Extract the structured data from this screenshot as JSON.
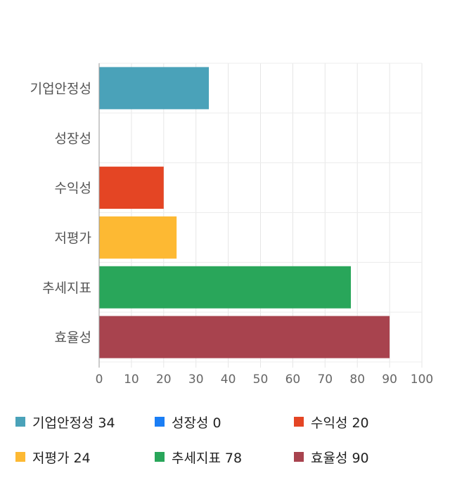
{
  "chart_data": {
    "type": "bar",
    "orientation": "horizontal",
    "categories": [
      "기업안정성",
      "성장성",
      "수익성",
      "저평가",
      "추세지표",
      "효율성"
    ],
    "values": [
      34,
      0,
      20,
      24,
      78,
      90
    ],
    "colors": [
      "#4aa2b9",
      "#1a7ef5",
      "#e44524",
      "#fdb933",
      "#29a65a",
      "#a8434e"
    ],
    "xlim": [
      0,
      100
    ],
    "xticks": [
      "0",
      "10",
      "20",
      "30",
      "40",
      "50",
      "60",
      "70",
      "80",
      "90",
      "100"
    ],
    "grid": true,
    "legend_position": "bottom",
    "title": "",
    "xlabel": "",
    "ylabel": ""
  },
  "legend": [
    {
      "label": "기업안정성",
      "value": "34",
      "color": "#4aa2b9"
    },
    {
      "label": "성장성",
      "value": "0",
      "color": "#1a7ef5"
    },
    {
      "label": "수익성",
      "value": "20",
      "color": "#e44524"
    },
    {
      "label": "저평가",
      "value": "24",
      "color": "#fdb933"
    },
    {
      "label": "추세지표",
      "value": "78",
      "color": "#29a65a"
    },
    {
      "label": "효율성",
      "value": "90",
      "color": "#a8434e"
    }
  ]
}
